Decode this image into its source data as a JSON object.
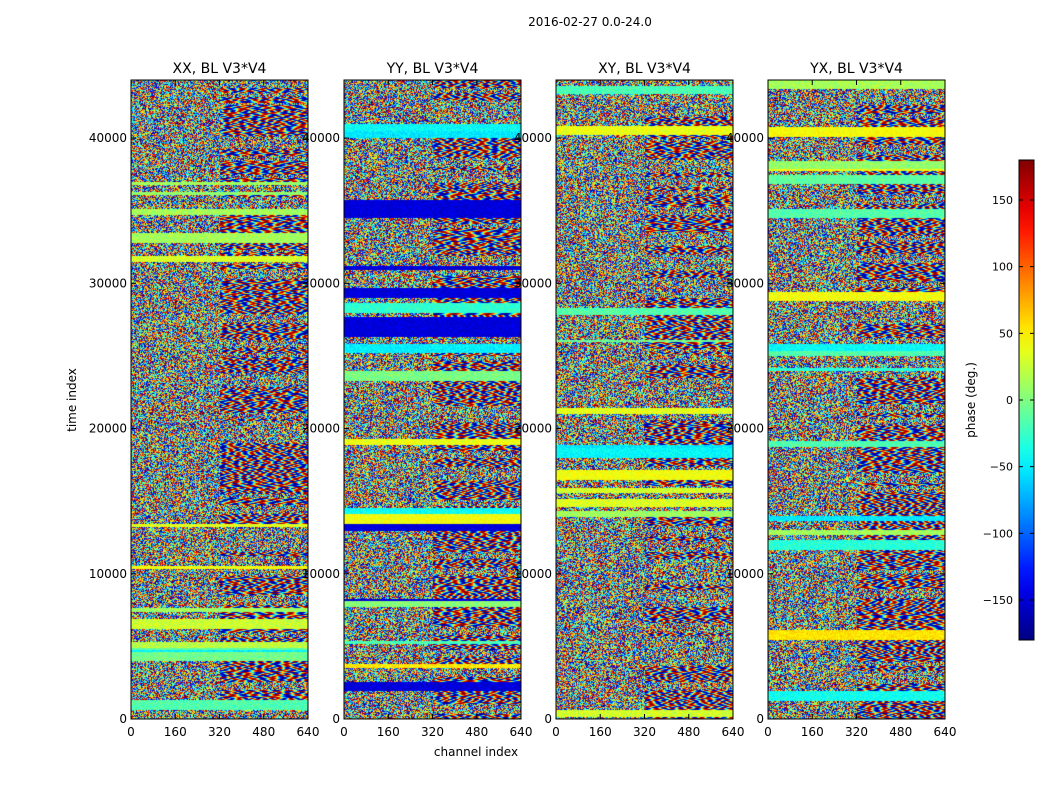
{
  "figure": {
    "suptitle": "2016-02-27 0.0-24.0"
  },
  "chart_data": {
    "type": "heatmap",
    "title": "2016-02-27 0.0-24.0",
    "xlabel": "channel index",
    "ylabel": "time index",
    "xlim": [
      0,
      640
    ],
    "ylim": [
      0,
      44000
    ],
    "xticks": [
      "0",
      "160",
      "320",
      "480",
      "640"
    ],
    "yticks": [
      "0",
      "10000",
      "20000",
      "30000",
      "40000"
    ],
    "panels": [
      {
        "title": "XX, BL V3*V4"
      },
      {
        "title": "YY, BL V3*V4"
      },
      {
        "title": "XY, BL V3*V4"
      },
      {
        "title": "YX, BL V3*V4"
      }
    ],
    "colorbar": {
      "label": "phase (deg.)",
      "range": [
        -180,
        180
      ],
      "ticks": [
        "150",
        "100",
        "50",
        "0",
        "−50",
        "−100",
        "−150"
      ],
      "tick_values": [
        150,
        100,
        50,
        0,
        -50,
        -100,
        -150
      ],
      "colormap": "jet"
    },
    "values": "per-pixel phase values in degrees (dense visibility phase data; fringe patterns at high channel indices; visualized as jet colormap)"
  }
}
